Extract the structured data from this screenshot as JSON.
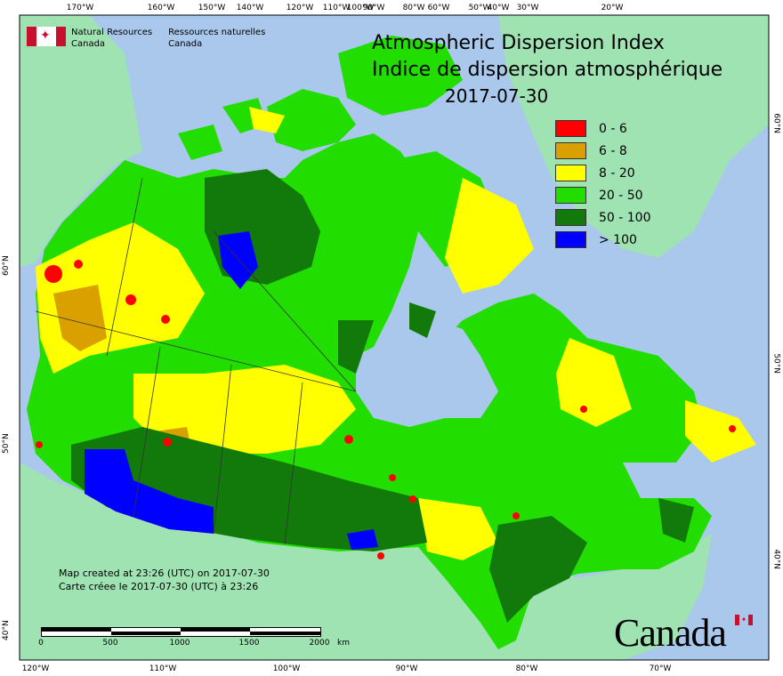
{
  "map": {
    "org_en": [
      "Natural Resources",
      "Canada"
    ],
    "org_fr": [
      "Ressources naturelles",
      "Canada"
    ],
    "title_en": "Atmospheric Dispersion Index",
    "title_fr": "Indice de dispersion atmosphérique",
    "date": "2017-07-30",
    "legend": [
      {
        "label": "0 - 6",
        "color": "#ff0000"
      },
      {
        "label": "6 - 8",
        "color": "#d9a000"
      },
      {
        "label": "8 - 20",
        "color": "#ffff00"
      },
      {
        "label": "20 - 50",
        "color": "#22dd00"
      },
      {
        "label": "50 - 100",
        "color": "#117a0a"
      },
      {
        "label": "> 100",
        "color": "#0000ff"
      }
    ],
    "credit_en": "Map created at 23:26 (UTC) on 2017-07-30",
    "credit_fr": "Carte créee le 2017-07-30 (UTC) à 23:26",
    "scale": {
      "labels": [
        "0",
        "500",
        "1000",
        "1500",
        "2000"
      ],
      "unit": "km"
    },
    "wordmark": "Canada",
    "graticule": {
      "top": [
        "170°W",
        "160°W",
        "150°W",
        "140°W",
        "120°W",
        "110°W",
        "100°W",
        "90°W",
        "80°W",
        "60°W",
        "50°W",
        "40°W",
        "30°W",
        "20°W"
      ],
      "bottom": [
        "120°W",
        "110°W",
        "100°W",
        "90°W",
        "80°W",
        "70°W"
      ],
      "left": [
        "60°N",
        "50°N",
        "40°N"
      ],
      "right": [
        "60°N",
        "50°N",
        "40°N"
      ]
    },
    "colors": {
      "ocean": "#a9c8ec",
      "land_other": "#9fe3b3",
      "water": "#a9c8ec"
    }
  }
}
